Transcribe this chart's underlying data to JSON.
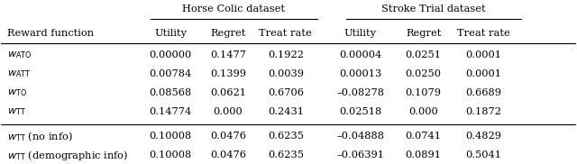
{
  "col_headers_top": [
    "Horse Colic dataset",
    "Stroke Trial dataset"
  ],
  "col_headers_sub": [
    "Reward function",
    "Utility",
    "Regret",
    "Treat rate",
    "Utility",
    "Regret",
    "Treat rate"
  ],
  "rows_group1": [
    [
      "$w_{\\mathrm{ATO}}$",
      "0.00000",
      "0.1477",
      "0.1922",
      "0.00004",
      "0.0251",
      "0.0001"
    ],
    [
      "$w_{\\mathrm{ATT}}$",
      "0.00784",
      "0.1399",
      "0.0039",
      "0.00013",
      "0.0250",
      "0.0001"
    ],
    [
      "$w_{\\mathrm{TO}}$",
      "0.08568",
      "0.0621",
      "0.6706",
      "–0.08278",
      "0.1079",
      "0.6689"
    ],
    [
      "$w_{\\mathrm{TT}}$",
      "0.14774",
      "0.000",
      "0.2431",
      "0.02518",
      "0.000",
      "0.1872"
    ]
  ],
  "rows_group2": [
    [
      "$w_{\\mathrm{TT}}$ (no info)",
      "0.10008",
      "0.0476",
      "0.6235",
      "–0.04888",
      "0.0741",
      "0.4829"
    ],
    [
      "$w_{\\mathrm{TT}}$ (demographic info)",
      "0.10008",
      "0.0476",
      "0.6235",
      "–0.06391",
      "0.0891",
      "0.5041"
    ]
  ],
  "figsize": [
    6.4,
    1.82
  ],
  "dpi": 100
}
